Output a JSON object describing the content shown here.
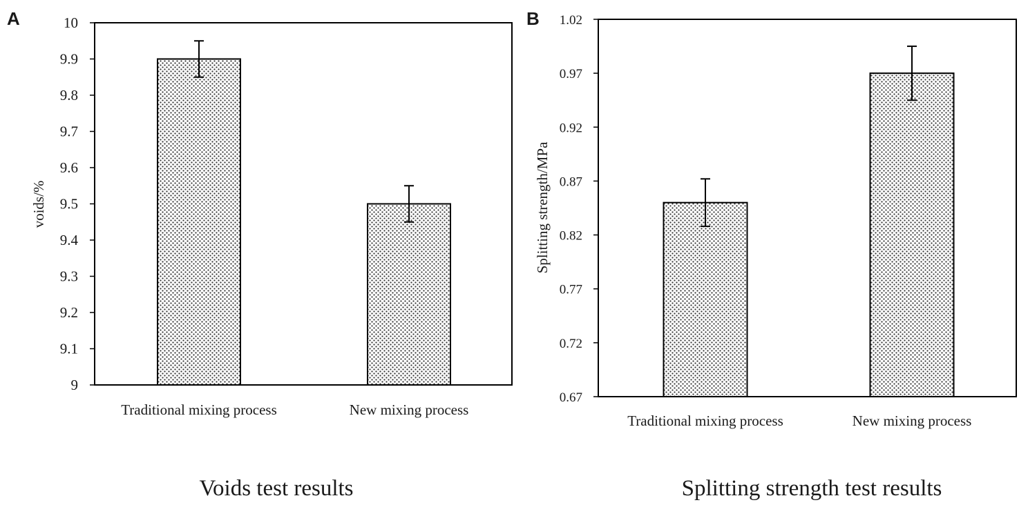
{
  "figure": {
    "panels": [
      "A",
      "B"
    ]
  },
  "colors": {
    "bar_fill": "#ffffff",
    "bar_dots": "#3a3a3a",
    "axis": "#000000",
    "text": "#1a1a1a"
  },
  "chart_data": [
    {
      "panel_label": "A",
      "type": "bar",
      "title": "Voids test results",
      "xlabel": "",
      "ylabel": "voids/%",
      "categories": [
        "Traditional mixing process",
        "New mixing process"
      ],
      "series": [
        {
          "name": "voids",
          "values": [
            9.9,
            9.5
          ],
          "error": [
            0.05,
            0.05
          ]
        }
      ],
      "ylim": [
        9,
        10
      ],
      "yticks": [
        9,
        9.1,
        9.2,
        9.3,
        9.4,
        9.5,
        9.6,
        9.7,
        9.8,
        9.9,
        10
      ],
      "ytick_labels": [
        "9",
        "9.1",
        "9.2",
        "9.3",
        "9.4",
        "9.5",
        "9.6",
        "9.7",
        "9.8",
        "9.9",
        "10"
      ],
      "grid": false,
      "legend": "none",
      "bar_pattern": "dotted"
    },
    {
      "panel_label": "B",
      "type": "bar",
      "title": "Splitting strength test results",
      "xlabel": "",
      "ylabel": "Splitting strength/MPa",
      "categories": [
        "Traditional mixing process",
        "New mixing process"
      ],
      "series": [
        {
          "name": "splitting strength",
          "values": [
            0.85,
            0.97
          ],
          "error": [
            0.022,
            0.025
          ]
        }
      ],
      "ylim": [
        0.67,
        1.02
      ],
      "yticks": [
        0.67,
        0.72,
        0.77,
        0.82,
        0.87,
        0.92,
        0.97,
        1.02
      ],
      "ytick_labels": [
        "0.67",
        "0.72",
        "0.77",
        "0.82",
        "0.87",
        "0.92",
        "0.97",
        "1.02"
      ],
      "grid": false,
      "legend": "none",
      "bar_pattern": "dotted"
    }
  ]
}
